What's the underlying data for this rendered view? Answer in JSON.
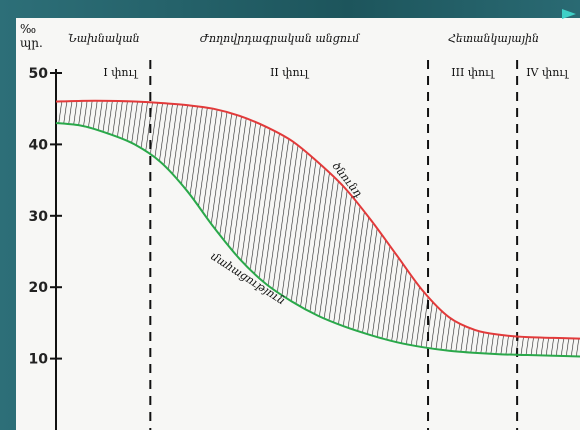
{
  "colors": {
    "background": "#1f5b63",
    "birth_rate": "#e23a3a",
    "death_rate": "#2aa84a",
    "axis": "#111111",
    "accent": "#3fd0c6"
  },
  "chart_data": {
    "type": "line",
    "ylabel_line1": "‰",
    "ylabel_line2": "պր.",
    "yticks": [
      10,
      20,
      30,
      40,
      50
    ],
    "ylim": [
      0,
      50
    ],
    "xlim": [
      0,
      100
    ],
    "periods": [
      "Նախնական",
      "Ժողովրդագրական անցում",
      "Հետանկայային"
    ],
    "phases": [
      "I փուլ",
      "II փուլ",
      "III փուլ",
      "IV փուլ"
    ],
    "phase_boundaries": [
      18,
      71,
      88
    ],
    "series": [
      {
        "name": "ծնունդ",
        "color": "#e23a3a",
        "x": [
          0,
          5,
          10,
          15,
          20,
          25,
          30,
          35,
          40,
          45,
          50,
          55,
          60,
          65,
          70,
          75,
          80,
          85,
          90,
          95,
          100
        ],
        "y": [
          46,
          46.1,
          46.1,
          46,
          45.8,
          45.5,
          45,
          44,
          42.5,
          40.5,
          37.5,
          34,
          29.5,
          24.5,
          19.5,
          15.8,
          14,
          13.3,
          13,
          12.9,
          12.8
        ]
      },
      {
        "name": "մահացություն",
        "color": "#2aa84a",
        "x": [
          0,
          5,
          10,
          15,
          20,
          25,
          30,
          35,
          40,
          45,
          50,
          55,
          60,
          65,
          70,
          75,
          80,
          85,
          90,
          95,
          100
        ],
        "y": [
          43,
          42.6,
          41.5,
          40,
          37.5,
          33.5,
          28.5,
          24,
          20.5,
          18,
          16,
          14.5,
          13.3,
          12.3,
          11.6,
          11.1,
          10.8,
          10.6,
          10.5,
          10.4,
          10.3
        ]
      }
    ]
  }
}
